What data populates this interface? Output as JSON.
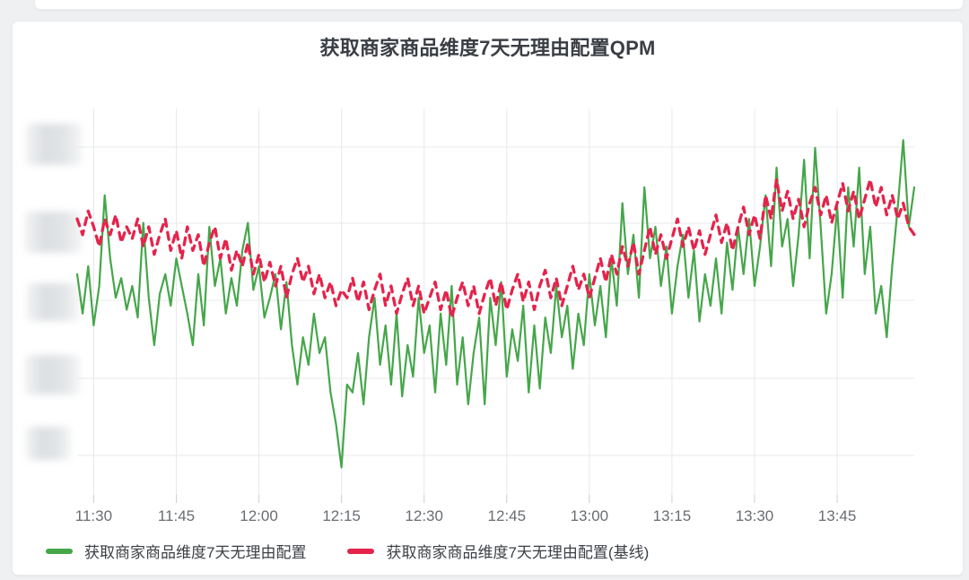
{
  "panel": {
    "title": "获取商家商品维度7天无理由配置QPM"
  },
  "y_axis": {
    "labels_redacted": true,
    "label_count": 5
  },
  "chart_data": {
    "type": "line",
    "title": "获取商家商品维度7天无理由配置QPM",
    "xlabel": "",
    "ylabel": "",
    "x_start": "11:27",
    "x_end": "13:59",
    "x_step_minutes": 1,
    "x_ticks": [
      "11:30",
      "11:45",
      "12:00",
      "12:15",
      "12:30",
      "12:45",
      "13:00",
      "13:15",
      "13:30",
      "13:45"
    ],
    "ylim": [
      0,
      100
    ],
    "y_axis_note": "y-axis tick labels are blurred/redacted in the screenshot; values are relative (0-100 of plot height)",
    "grid": true,
    "legend_position": "bottom-left",
    "series": [
      {
        "name": "获取商家商品维度7天无理由配置",
        "color": "#45a64a",
        "style": "solid",
        "values": [
          58,
          48,
          60,
          45,
          55,
          78,
          62,
          52,
          57,
          49,
          55,
          47,
          71,
          52,
          40,
          53,
          58,
          50,
          62,
          55,
          48,
          40,
          58,
          45,
          70,
          55,
          62,
          48,
          57,
          50,
          64,
          71,
          54,
          60,
          47,
          52,
          58,
          44,
          56,
          40,
          30,
          42,
          35,
          48,
          38,
          42,
          28,
          20,
          9,
          30,
          28,
          38,
          25,
          42,
          52,
          35,
          45,
          30,
          48,
          27,
          40,
          32,
          52,
          38,
          45,
          28,
          48,
          35,
          55,
          30,
          42,
          25,
          38,
          47,
          25,
          52,
          40,
          56,
          32,
          44,
          36,
          50,
          28,
          45,
          29,
          47,
          38,
          55,
          42,
          50,
          34,
          48,
          40,
          58,
          45,
          55,
          42,
          62,
          50,
          76,
          58,
          68,
          52,
          80,
          62,
          70,
          55,
          65,
          48,
          60,
          68,
          52,
          64,
          46,
          58,
          50,
          62,
          48,
          66,
          54,
          70,
          58,
          72,
          55,
          65,
          78,
          60,
          85,
          65,
          72,
          55,
          68,
          87,
          62,
          90,
          70,
          48,
          58,
          75,
          52,
          80,
          65,
          85,
          58,
          70,
          48,
          55,
          42,
          60,
          75,
          92,
          70,
          80
        ]
      },
      {
        "name": "获取商家商品维度7天无理由配置(基线)",
        "color": "#e5234c",
        "style": "dashed",
        "values": [
          72,
          68,
          74,
          70,
          65,
          72,
          68,
          73,
          66,
          70,
          67,
          72,
          65,
          70,
          63,
          68,
          72,
          64,
          69,
          62,
          70,
          64,
          68,
          60,
          66,
          70,
          62,
          67,
          59,
          64,
          60,
          66,
          58,
          63,
          56,
          61,
          55,
          60,
          52,
          58,
          62,
          56,
          60,
          53,
          58,
          52,
          56,
          50,
          54,
          52,
          57,
          51,
          56,
          49,
          54,
          58,
          50,
          55,
          48,
          53,
          57,
          50,
          55,
          48,
          52,
          56,
          49,
          54,
          47,
          52,
          56,
          50,
          55,
          48,
          53,
          57,
          50,
          56,
          49,
          54,
          58,
          51,
          56,
          49,
          55,
          59,
          52,
          57,
          50,
          55,
          60,
          54,
          58,
          52,
          57,
          62,
          56,
          63,
          58,
          65,
          60,
          66,
          58,
          64,
          70,
          63,
          68,
          62,
          67,
          72,
          65,
          70,
          64,
          69,
          63,
          68,
          73,
          66,
          71,
          64,
          70,
          75,
          68,
          73,
          67,
          78,
          72,
          82,
          74,
          79,
          72,
          77,
          70,
          76,
          80,
          73,
          78,
          71,
          76,
          81,
          74,
          79,
          72,
          77,
          82,
          75,
          80,
          73,
          78,
          72,
          76,
          70,
          68
        ]
      }
    ]
  }
}
